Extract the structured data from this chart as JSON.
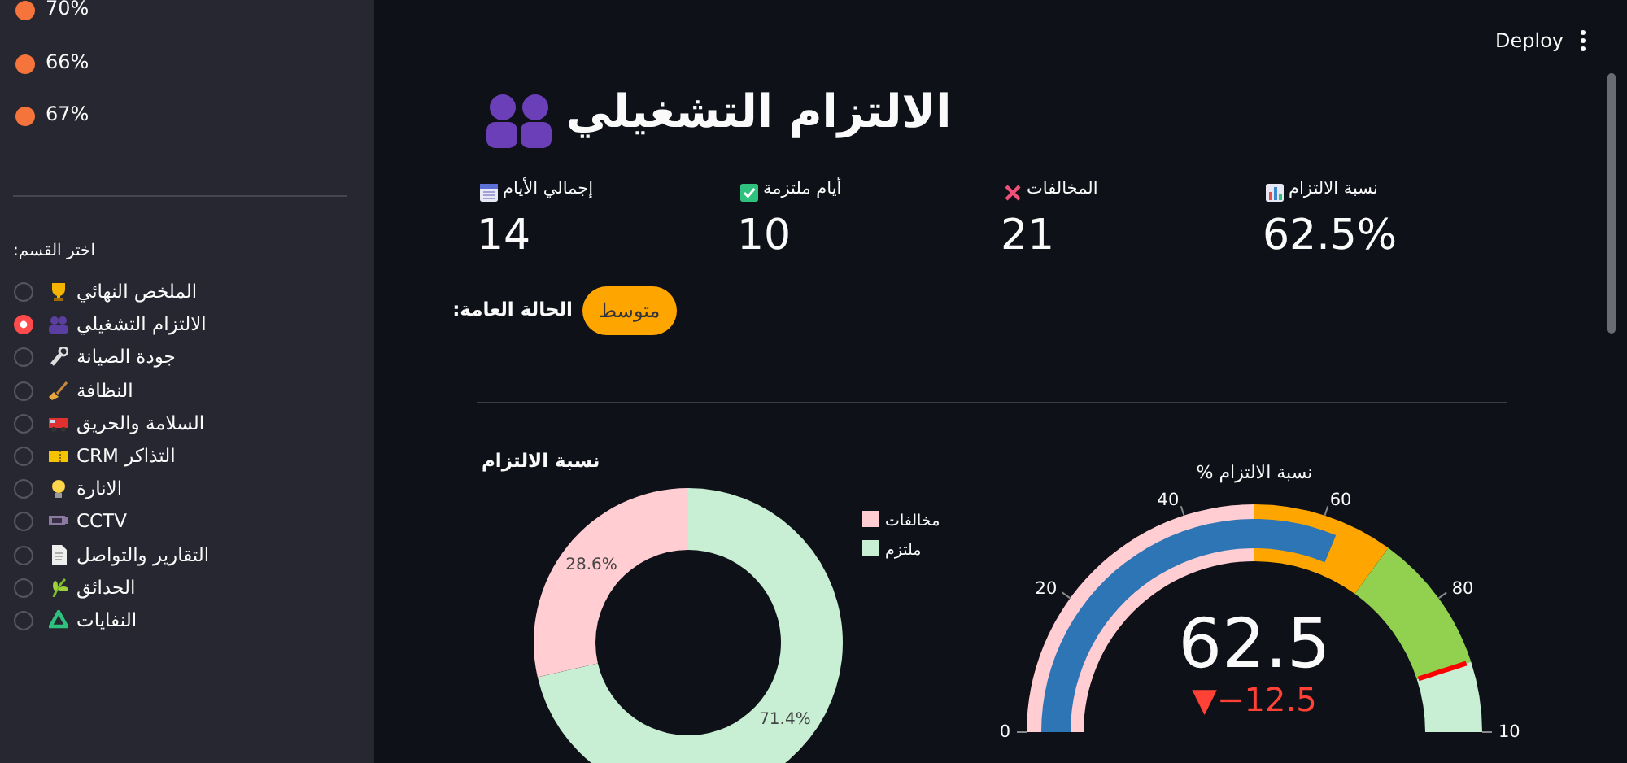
{
  "chart_data": [
    {
      "type": "other",
      "annotations": [
        "70%",
        "66%",
        "67%",
        "اختر القسم:",
        "الملخص النهائي",
        "الالتزام التشغيلي",
        "جودة الصيانة",
        "النظافة",
        "السلامة والحريق",
        "CRM التذاكر",
        "الانارة",
        "CCTV",
        "التقارير والتواصل",
        "الحدائق",
        "النفايات"
      ]
    },
    {
      "type": "other",
      "title": "الالتزام التشغيلي",
      "annotations": [
        "Deploy",
        "إجمالي الأيام",
        "14",
        "أيام ملتزمة",
        "10",
        "المخالفات",
        "21",
        "نسبة الالتزام",
        "62.5%",
        "الحالة العامة:",
        "متوسط"
      ]
    },
    {
      "type": "donut",
      "title": "نسبة الالتزام",
      "categories": [
        "ملتزم",
        "مخالفات"
      ],
      "values": [
        71.4,
        28.6
      ],
      "colors": [
        "#c8efd4",
        "#ffcdd2"
      ],
      "value_labels": [
        "71.4%",
        "28.6%"
      ],
      "legend": "top right"
    },
    {
      "type": "other",
      "title": "% نسبة الالتزام",
      "annotations": [
        "0",
        "20",
        "40",
        "60",
        "80",
        "10",
        "62.5",
        "▼−12.5"
      ]
    }
  ]
}
